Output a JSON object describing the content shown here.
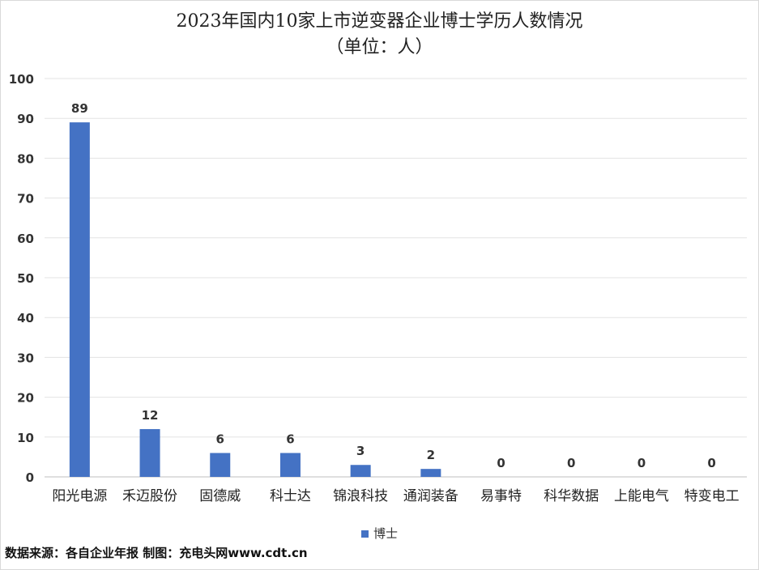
{
  "chart_data": {
    "type": "bar",
    "title": "2023年国内10家上市逆变器企业博士学历人数情况",
    "subtitle": "（单位：人）",
    "categories": [
      "阳光电源",
      "禾迈股份",
      "固德威",
      "科士达",
      "锦浪科技",
      "通润装备",
      "易事特",
      "科华数据",
      "上能电气",
      "特变电工"
    ],
    "series": [
      {
        "name": "博士",
        "values": [
          89,
          12,
          6,
          6,
          3,
          2,
          0,
          0,
          0,
          0
        ],
        "color": "#4472C4"
      }
    ],
    "ylim": [
      0,
      100
    ],
    "yticks": [
      0,
      10,
      20,
      30,
      40,
      50,
      60,
      70,
      80,
      90,
      100
    ],
    "grid": true,
    "legend_position": "bottom"
  },
  "source_note": "数据来源：各自企业年报 制图：充电头网www.cdt.cn"
}
